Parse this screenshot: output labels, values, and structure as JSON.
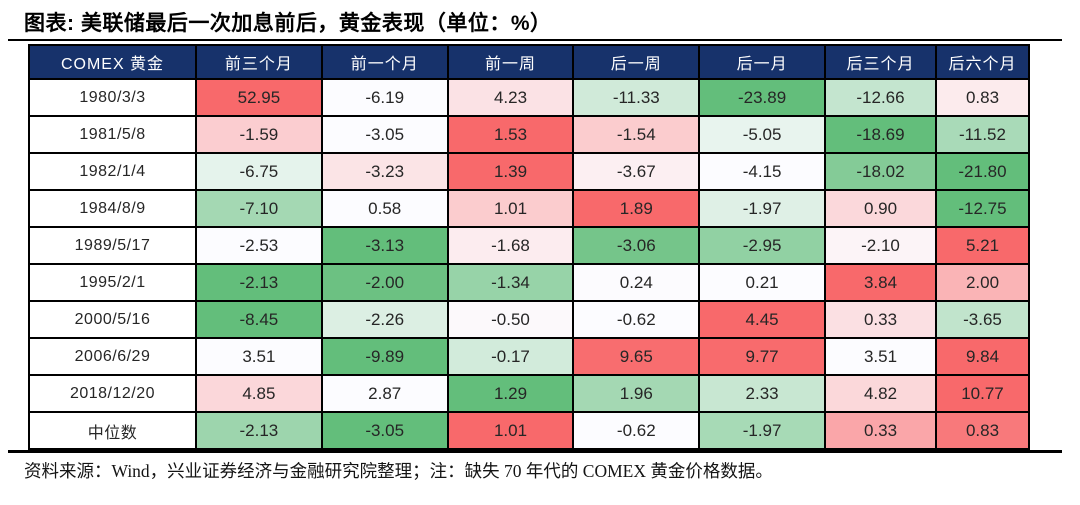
{
  "title": "图表: 美联储最后一次加息前后，黄金表现（单位：%）",
  "source_note": "资料来源：Wind，兴业证券经济与金融研究院整理；注：缺失 70 年代的 COMEX 黄金价格数据。",
  "chart_data": {
    "type": "table",
    "title": "美联储最后一次加息前后，黄金表现（单位：%）",
    "columns": [
      "COMEX 黄金",
      "前三个月",
      "前一个月",
      "前一周",
      "后一周",
      "后一月",
      "后三个月",
      "后六个月"
    ],
    "rows": [
      {
        "label": "1980/3/3",
        "values": [
          52.95,
          -6.19,
          4.23,
          -11.33,
          -23.89,
          -12.66,
          0.83
        ]
      },
      {
        "label": "1981/5/8",
        "values": [
          -1.59,
          -3.05,
          1.53,
          -1.54,
          -5.05,
          -18.69,
          -11.52
        ]
      },
      {
        "label": "1982/1/4",
        "values": [
          -6.75,
          -3.23,
          1.39,
          -3.67,
          -4.15,
          -18.02,
          -21.8
        ]
      },
      {
        "label": "1984/8/9",
        "values": [
          -7.1,
          0.58,
          1.01,
          1.89,
          -1.97,
          0.9,
          -12.75
        ]
      },
      {
        "label": "1989/5/17",
        "values": [
          -2.53,
          -3.13,
          -1.68,
          -3.06,
          -2.95,
          -2.1,
          5.21
        ]
      },
      {
        "label": "1995/2/1",
        "values": [
          -2.13,
          -2.0,
          -1.34,
          0.24,
          0.21,
          3.84,
          2.0
        ]
      },
      {
        "label": "2000/5/16",
        "values": [
          -8.45,
          -2.26,
          -0.5,
          -0.62,
          4.45,
          0.33,
          -3.65
        ]
      },
      {
        "label": "2006/6/29",
        "values": [
          3.51,
          -9.89,
          -0.17,
          9.65,
          9.77,
          3.51,
          9.84
        ]
      },
      {
        "label": "2018/12/20",
        "values": [
          4.85,
          2.87,
          1.29,
          1.96,
          2.33,
          4.82,
          10.77
        ]
      },
      {
        "label": "中位数",
        "values": [
          -2.13,
          -3.05,
          1.01,
          -0.62,
          -1.97,
          0.33,
          0.83
        ]
      }
    ],
    "heatmap": {
      "mode": "per-row-3-color-scale",
      "midpoint": "50th-percentile",
      "low_color": "#63BE7B",
      "mid_color": "#FCFCFF",
      "high_color": "#F8696B"
    },
    "header_bg": "#17326B",
    "header_text_color": "#FFFFFF",
    "grid_color": "#000000",
    "value_text_color": "#262626"
  }
}
